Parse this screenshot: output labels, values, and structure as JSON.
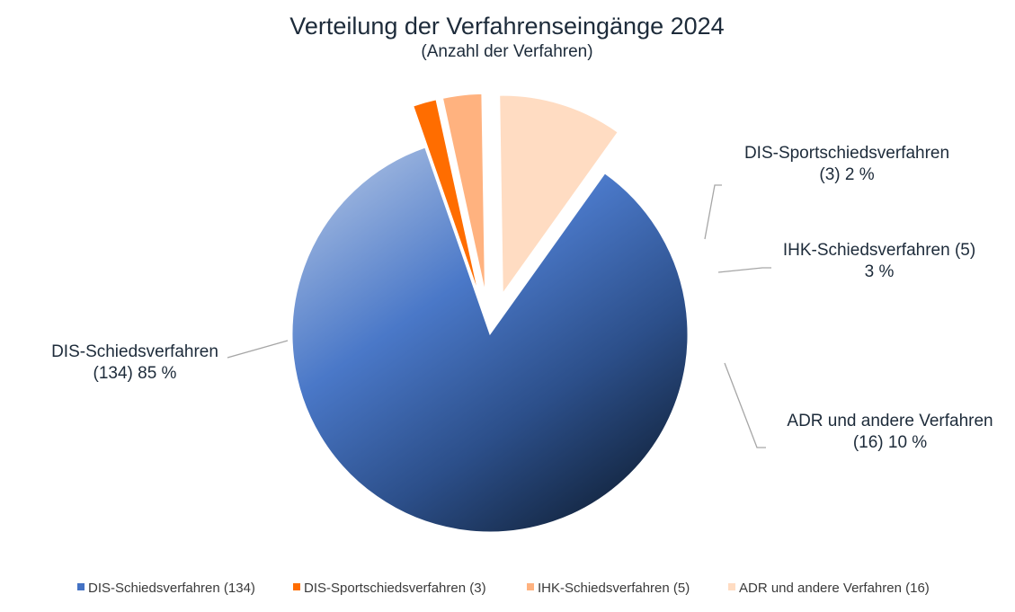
{
  "chart_data": {
    "type": "pie",
    "title": "Verteilung der Verfahrenseingänge 2024",
    "subtitle": "(Anzahl der Verfahren)",
    "legend_position": "bottom",
    "slices": [
      {
        "name": "DIS-Schiedsverfahren",
        "value": 134,
        "percent_label": "85 %",
        "label_line1": "DIS-Schiedsverfahren",
        "label_line2": "(134) 85 %",
        "legend": "DIS-Schiedsverfahren (134)",
        "color": "#4472c4",
        "exploded": false
      },
      {
        "name": "DIS-Sportschiedsverfahren",
        "value": 3,
        "percent_label": "2 %",
        "label_line1": "DIS-Sportschiedsverfahren",
        "label_line2": "(3) 2 %",
        "legend": "DIS-Sportschiedsverfahren (3)",
        "color": "#ff6d00",
        "exploded": true
      },
      {
        "name": "IHK-Schiedsverfahren",
        "value": 5,
        "percent_label": "3 %",
        "label_line1": "IHK-Schiedsverfahren (5)",
        "label_line2": "3 %",
        "legend": "IHK-Schiedsverfahren (5)",
        "color": "#ffb27f",
        "exploded": true
      },
      {
        "name": "ADR und andere Verfahren",
        "value": 16,
        "percent_label": "10 %",
        "label_line1": "ADR und andere Verfahren",
        "label_line2": "(16) 10 %",
        "legend": "ADR und andere Verfahren (16)",
        "color": "#ffdcc2",
        "exploded": true
      }
    ]
  }
}
